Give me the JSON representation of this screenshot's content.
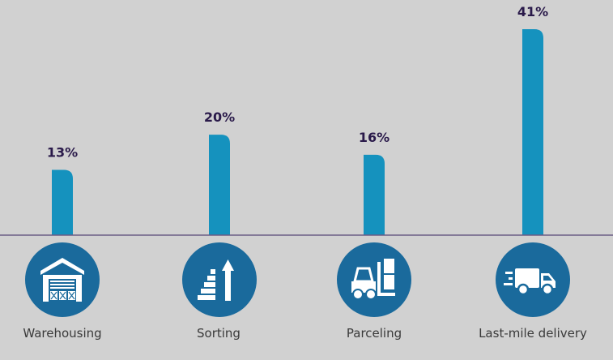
{
  "colors": {
    "background": "#d1d1d1",
    "bar": "#1592be",
    "value_label": "#2a1a4a",
    "baseline": "#6a5d86",
    "icon_circle": "#1a6a9c",
    "icon_fg": "#ffffff",
    "category_label": "#3a3a3a"
  },
  "chart_data": {
    "type": "bar",
    "categories": [
      "Warehousing",
      "Sorting",
      "Parceling",
      "Last-mile delivery"
    ],
    "values": [
      13,
      20,
      16,
      41
    ],
    "value_labels": [
      "13%",
      "20%",
      "16%",
      "41%"
    ],
    "icons": [
      "warehouse-icon",
      "sorting-icon",
      "forklift-icon",
      "delivery-truck-icon"
    ],
    "ylim": [
      0,
      41
    ],
    "grid": false
  }
}
